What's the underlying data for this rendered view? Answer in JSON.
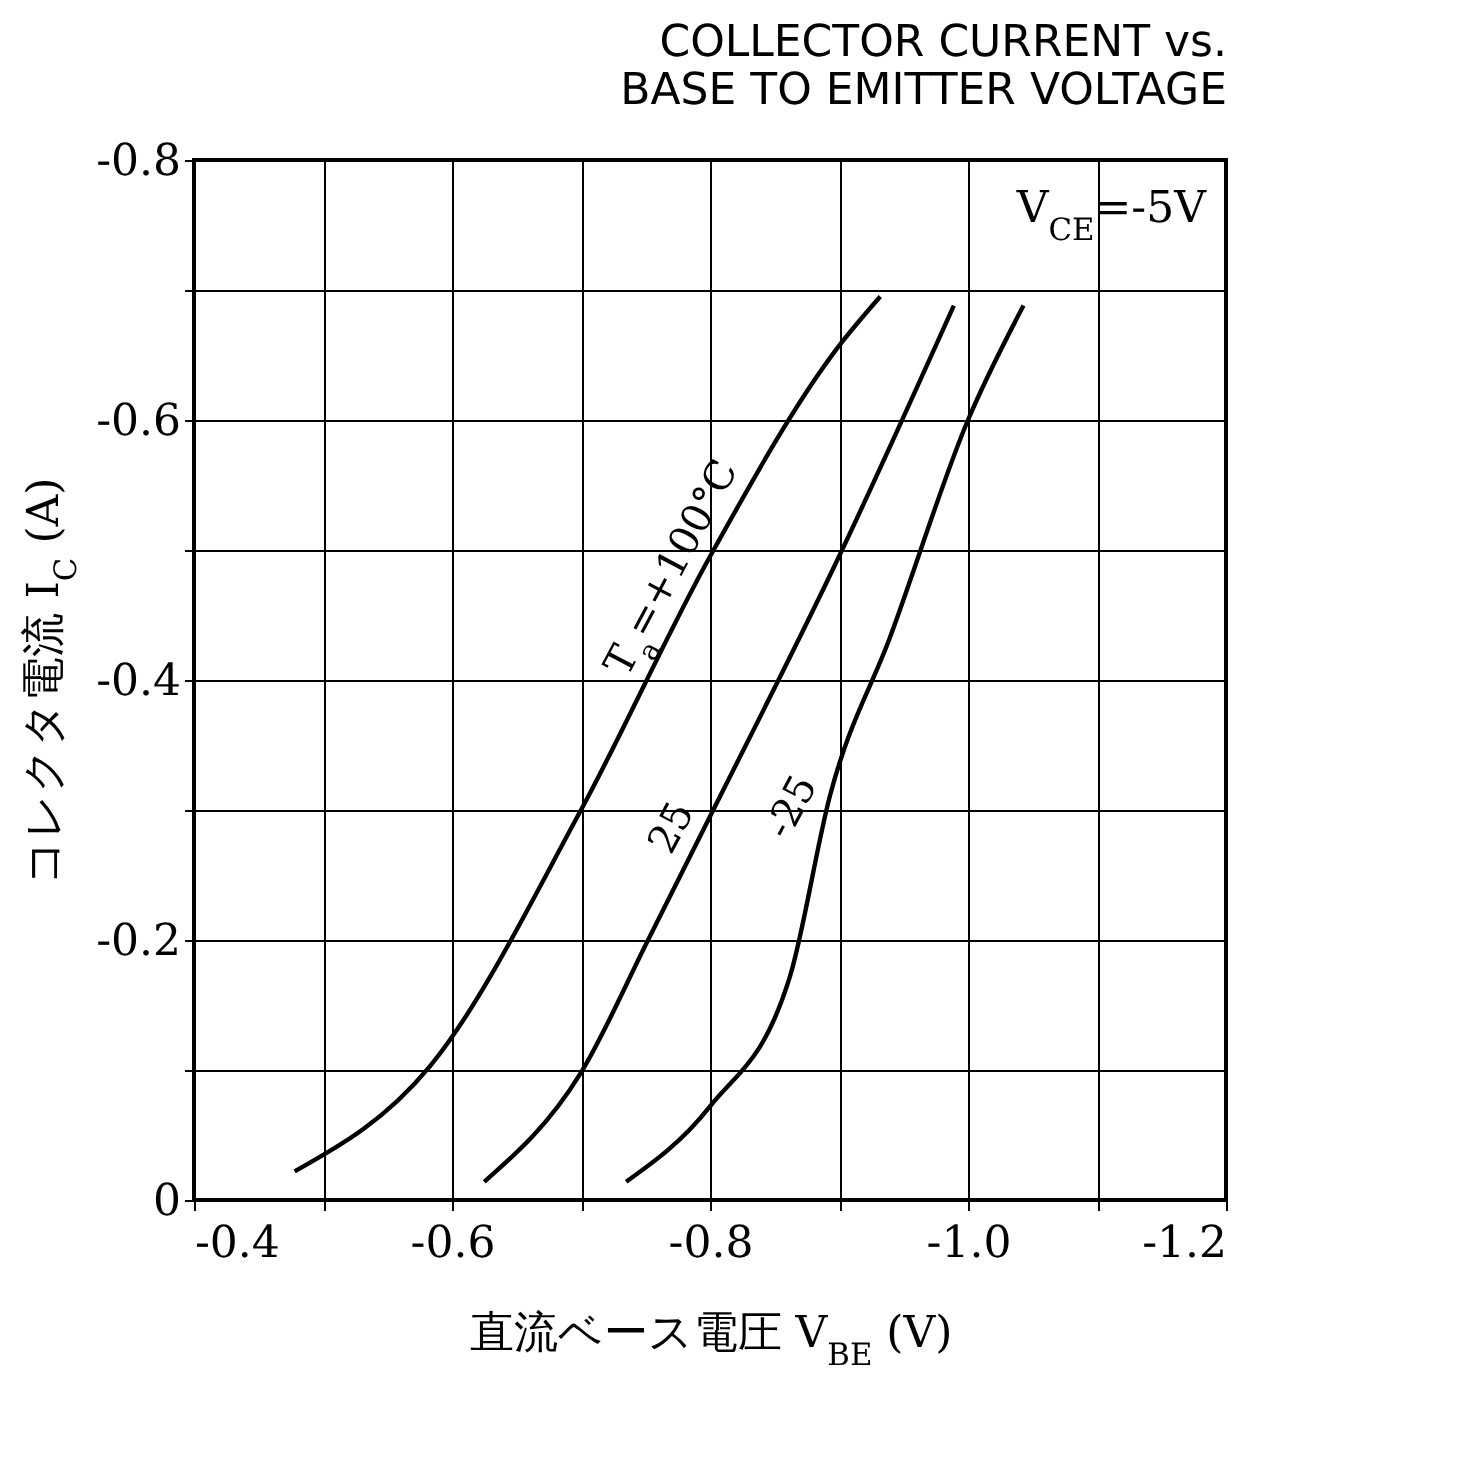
{
  "chart_data": {
    "type": "line",
    "title": "COLLECTOR CURRENT vs.\nBASE TO EMITTER VOLTAGE",
    "xlabel": "直流ベース電圧 V$_{BE}$ (V)",
    "ylabel": "コレクタ電流 I$_{C}$ (A)",
    "xlim": [
      -0.4,
      -1.2
    ],
    "ylim": [
      0,
      -0.8
    ],
    "xticks": [
      -0.4,
      {
        "value": -0.5,
        "label": null
      },
      -0.6,
      {
        "value": -0.7,
        "label": null
      },
      -0.8,
      {
        "value": -0.9,
        "label": null
      },
      {
        "value": -1.0,
        "label": "-1.0"
      },
      {
        "value": -1.1,
        "label": null
      },
      -1.2
    ],
    "yticks": [
      0,
      {
        "value": -0.1,
        "label": null
      },
      -0.2,
      {
        "value": -0.3,
        "label": null
      },
      -0.4,
      {
        "value": -0.5,
        "label": null
      },
      -0.6,
      {
        "value": -0.7,
        "label": null
      },
      -0.8
    ],
    "grid": true,
    "marker": "none",
    "line_style": "solid",
    "annotations": [
      "V$_{CE}$=-5V"
    ],
    "series": [
      {
        "name": "T$_{a}$=+100°C",
        "color": "#000000",
        "x": [
          -0.478,
          -0.583,
          -0.7,
          -0.8,
          -0.9,
          -0.932
        ],
        "values": [
          -0.022,
          -0.103,
          -0.3,
          -0.495,
          -0.657,
          -0.695
        ]
      },
      {
        "name": "25",
        "color": "#000000",
        "x": [
          -0.625,
          -0.7,
          -0.752,
          -0.8,
          -0.9,
          -0.989
        ],
        "values": [
          -0.014,
          -0.098,
          -0.2,
          -0.295,
          -0.495,
          -0.688
        ]
      },
      {
        "name": "-25",
        "color": "#000000",
        "x": [
          -0.735,
          -0.8,
          -0.862,
          -0.893,
          -0.94,
          -1.0,
          -1.043
        ],
        "values": [
          -0.014,
          -0.072,
          -0.172,
          -0.311,
          -0.434,
          -0.6,
          -0.688
        ]
      }
    ]
  }
}
